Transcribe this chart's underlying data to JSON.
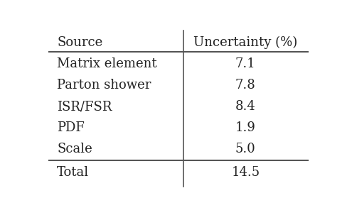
{
  "col_headers": [
    "Source",
    "Uncertainty (%)"
  ],
  "rows": [
    [
      "Matrix element",
      "7.1"
    ],
    [
      "Parton shower",
      "7.8"
    ],
    [
      "ISR/FSR",
      "8.4"
    ],
    [
      "PDF",
      "1.9"
    ],
    [
      "Scale",
      "5.0"
    ]
  ],
  "total_row": [
    "Total",
    "14.5"
  ],
  "text_color": "#222222",
  "line_color": "#555555",
  "font_size": 13,
  "header_font_size": 13,
  "fig_width": 4.89,
  "fig_height": 3.03,
  "dpi": 100
}
